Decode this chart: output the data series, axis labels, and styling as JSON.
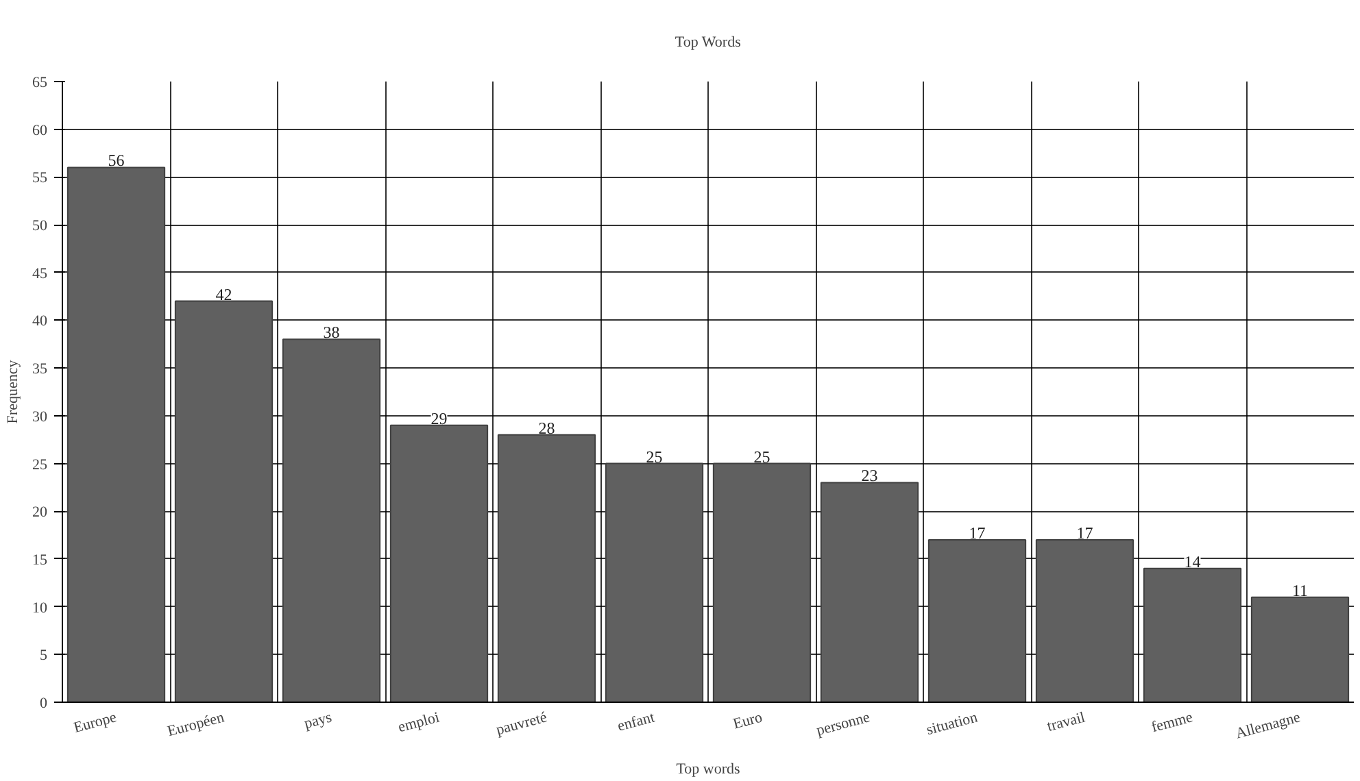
{
  "chart_data": {
    "type": "bar",
    "title": "Top Words",
    "xlabel": "Top words",
    "ylabel": "Frequency",
    "categories": [
      "Europe",
      "Européen",
      "pays",
      "emploi",
      "pauvreté",
      "enfant",
      "Euro",
      "personne",
      "situation",
      "travail",
      "femme",
      "Allemagne"
    ],
    "values": [
      56,
      42,
      38,
      29,
      28,
      25,
      25,
      23,
      17,
      17,
      14,
      11
    ],
    "color": "#606060",
    "ylim": [
      0,
      65
    ],
    "yticks": [
      0,
      5,
      10,
      15,
      20,
      25,
      30,
      35,
      40,
      45,
      50,
      55,
      60,
      65
    ],
    "grid": true,
    "data_labels": true
  }
}
